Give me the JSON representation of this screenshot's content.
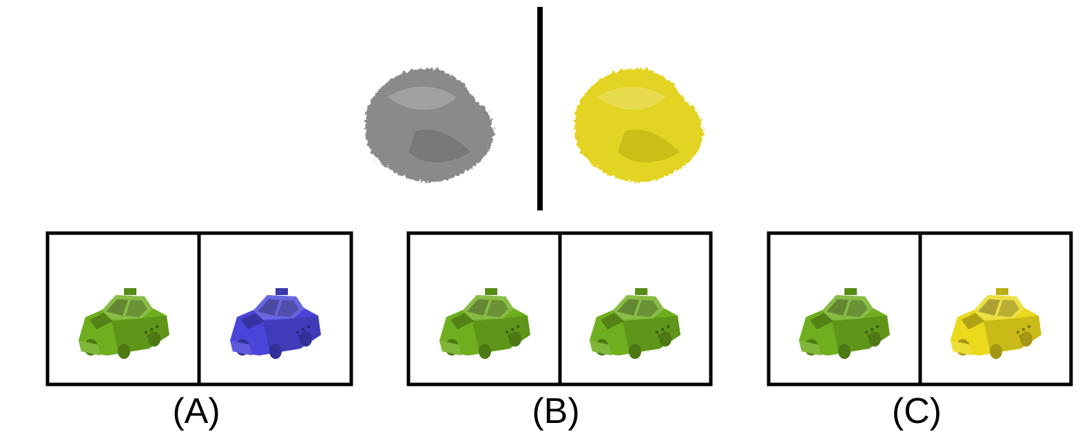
{
  "reference": {
    "left_render": "gray-noisy-shape",
    "right_render": "yellow-noisy-shape"
  },
  "options": [
    {
      "label": "(A)",
      "left_car_color": "#6fae1e",
      "right_car_color": "#4a45d8"
    },
    {
      "label": "(B)",
      "left_car_color": "#6fae1e",
      "right_car_color": "#6fae1e"
    },
    {
      "label": "(C)",
      "left_car_color": "#6fae1e",
      "right_car_color": "#ead91c"
    }
  ],
  "colors": {
    "gray_shape": "#8c8c8c",
    "yellow_shape": "#e3d321",
    "frame": "#000000"
  }
}
